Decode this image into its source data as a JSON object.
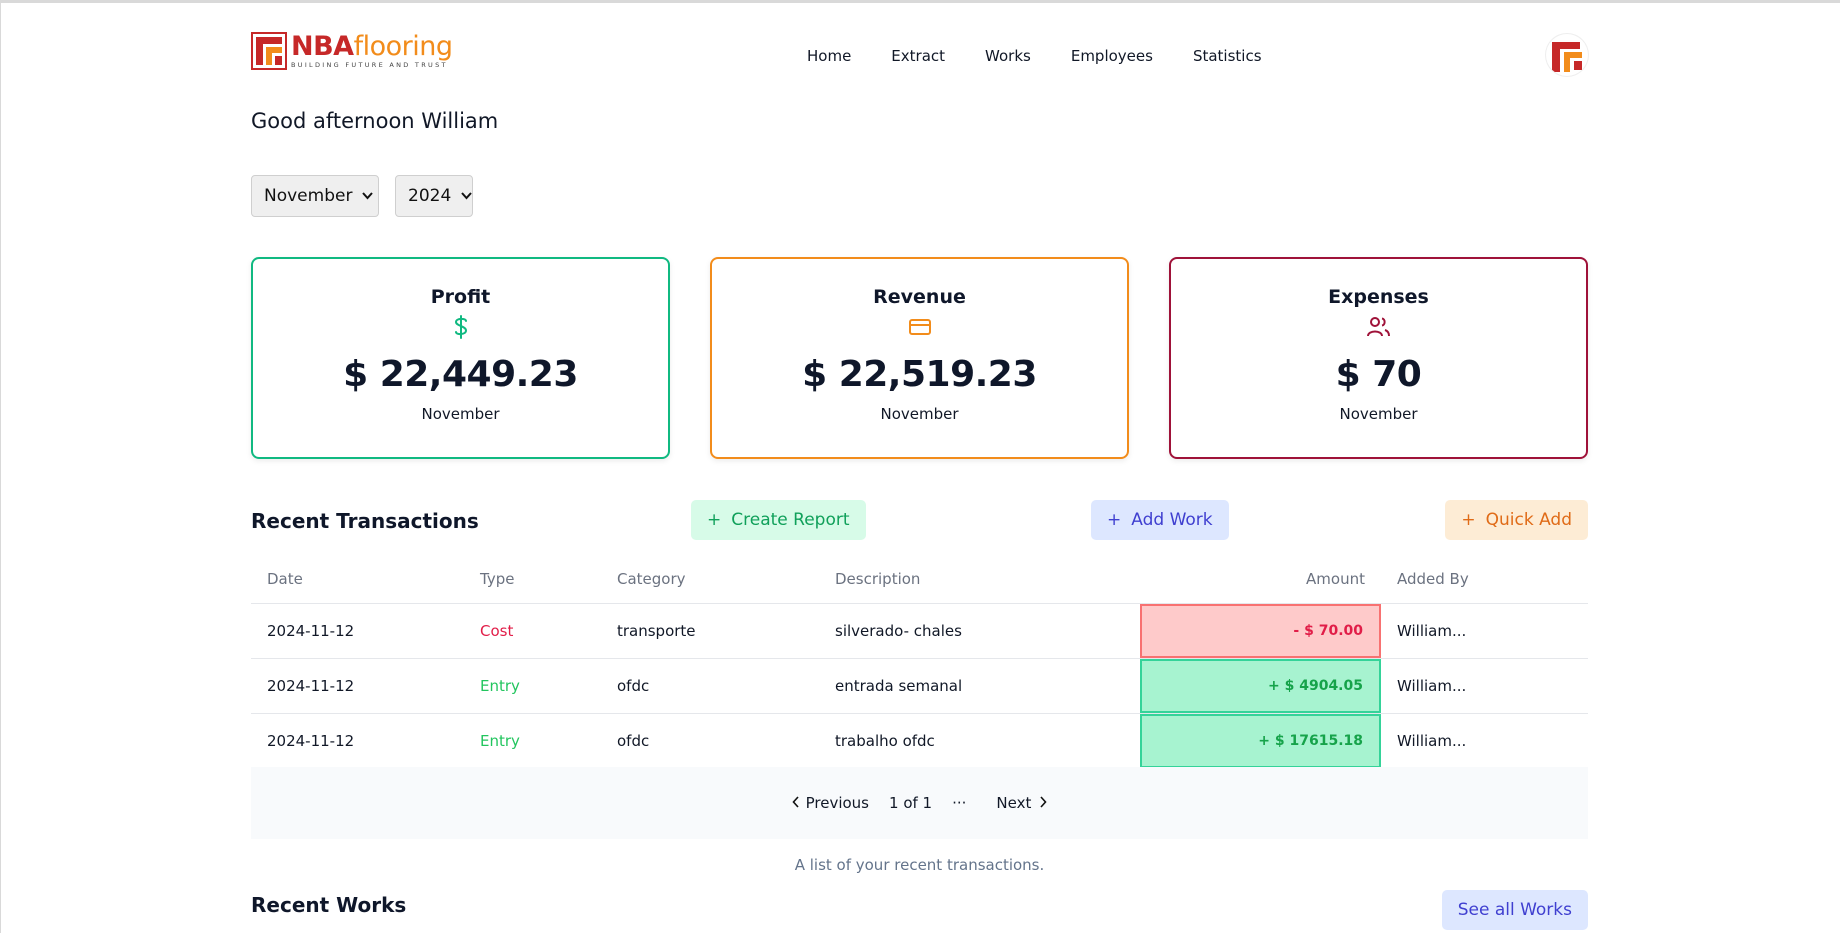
{
  "brand": {
    "name_part1": "NBA",
    "name_part2": "flooring",
    "tagline": "BUILDING FUTURE AND TRUST",
    "colors": {
      "red": "#c62828",
      "orange": "#f28c1b"
    }
  },
  "nav": {
    "items": [
      {
        "label": "Home"
      },
      {
        "label": "Extract"
      },
      {
        "label": "Works"
      },
      {
        "label": "Employees"
      },
      {
        "label": "Statistics"
      }
    ]
  },
  "greeting": "Good afternoon William",
  "filters": {
    "month": "November",
    "year": "2024"
  },
  "cards": [
    {
      "title": "Profit",
      "icon": "dollar-icon",
      "value": "$ 22,449.23",
      "period": "November",
      "color": "#10b981"
    },
    {
      "title": "Revenue",
      "icon": "credit-card-icon",
      "value": "$ 22,519.23",
      "period": "November",
      "color": "#f28c1b"
    },
    {
      "title": "Expenses",
      "icon": "users-icon",
      "value": "$ 70",
      "period": "November",
      "color": "#9f1239"
    }
  ],
  "transactions": {
    "title": "Recent Transactions",
    "buttons": {
      "create_report": "Create Report",
      "add_work": "Add Work",
      "quick_add": "Quick Add",
      "plus": "+"
    },
    "columns": {
      "date": "Date",
      "type": "Type",
      "category": "Category",
      "description": "Description",
      "amount": "Amount",
      "added_by": "Added By"
    },
    "rows": [
      {
        "date": "2024-11-12",
        "type": "Cost",
        "category": "transporte",
        "description": "silverado- chales",
        "amount": "- $ 70.00",
        "added_by": "William..."
      },
      {
        "date": "2024-11-12",
        "type": "Entry",
        "category": "ofdc",
        "description": "entrada semanal",
        "amount": "+ $ 4904.05",
        "added_by": "William..."
      },
      {
        "date": "2024-11-12",
        "type": "Entry",
        "category": "ofdc",
        "description": "trabalho ofdc",
        "amount": "+ $ 17615.18",
        "added_by": "William..."
      }
    ],
    "pagination": {
      "previous": "Previous",
      "page": "1 of 1",
      "ellipsis": "···",
      "next": "Next"
    },
    "caption": "A list of your recent transactions."
  },
  "works": {
    "title": "Recent Works",
    "see_all": "See all Works"
  }
}
